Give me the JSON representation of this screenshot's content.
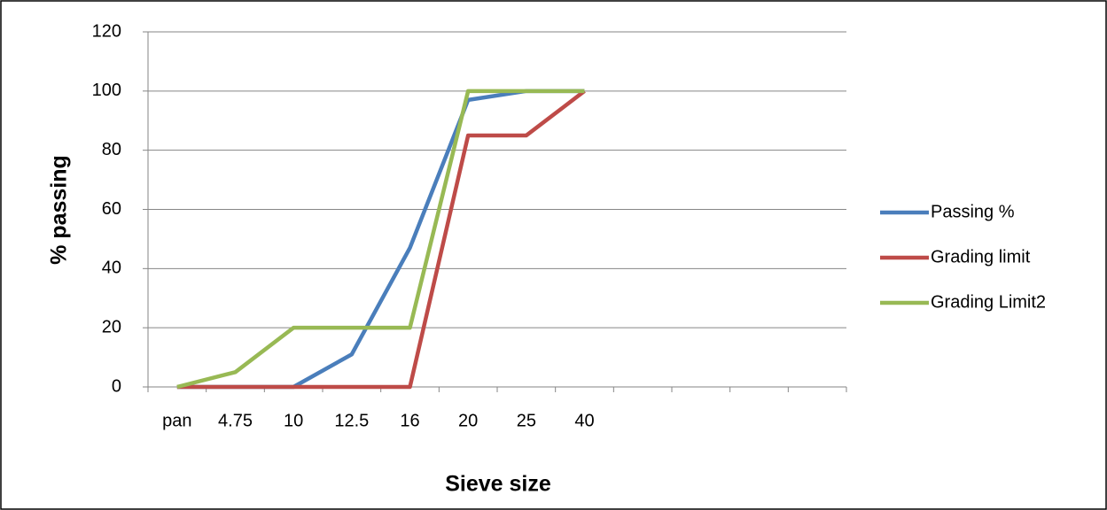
{
  "chart_data": {
    "type": "line",
    "x_label": "Sieve size",
    "y_label": "% passing",
    "categories": [
      "pan",
      "4.75",
      "10",
      "12.5",
      "16",
      "20",
      "25",
      "40",
      null,
      null,
      null,
      null
    ],
    "series": [
      {
        "name": "Passing %",
        "color": "#4a7ebb",
        "values": [
          0,
          0,
          0,
          11,
          47,
          97,
          100,
          100,
          null,
          null,
          null,
          null
        ]
      },
      {
        "name": "Grading limit",
        "color": "#be4b48",
        "values": [
          0,
          0,
          0,
          0,
          0,
          85,
          85,
          100,
          null,
          null,
          null,
          null
        ]
      },
      {
        "name": "Grading Limit2",
        "color": "#98b954",
        "values": [
          0,
          5,
          20,
          20,
          20,
          100,
          100,
          100,
          null,
          null,
          null,
          null
        ]
      }
    ],
    "ylim": [
      0,
      120
    ],
    "yticks": [
      0,
      20,
      40,
      60,
      80,
      100,
      120
    ],
    "grid": true,
    "legend": "right"
  }
}
